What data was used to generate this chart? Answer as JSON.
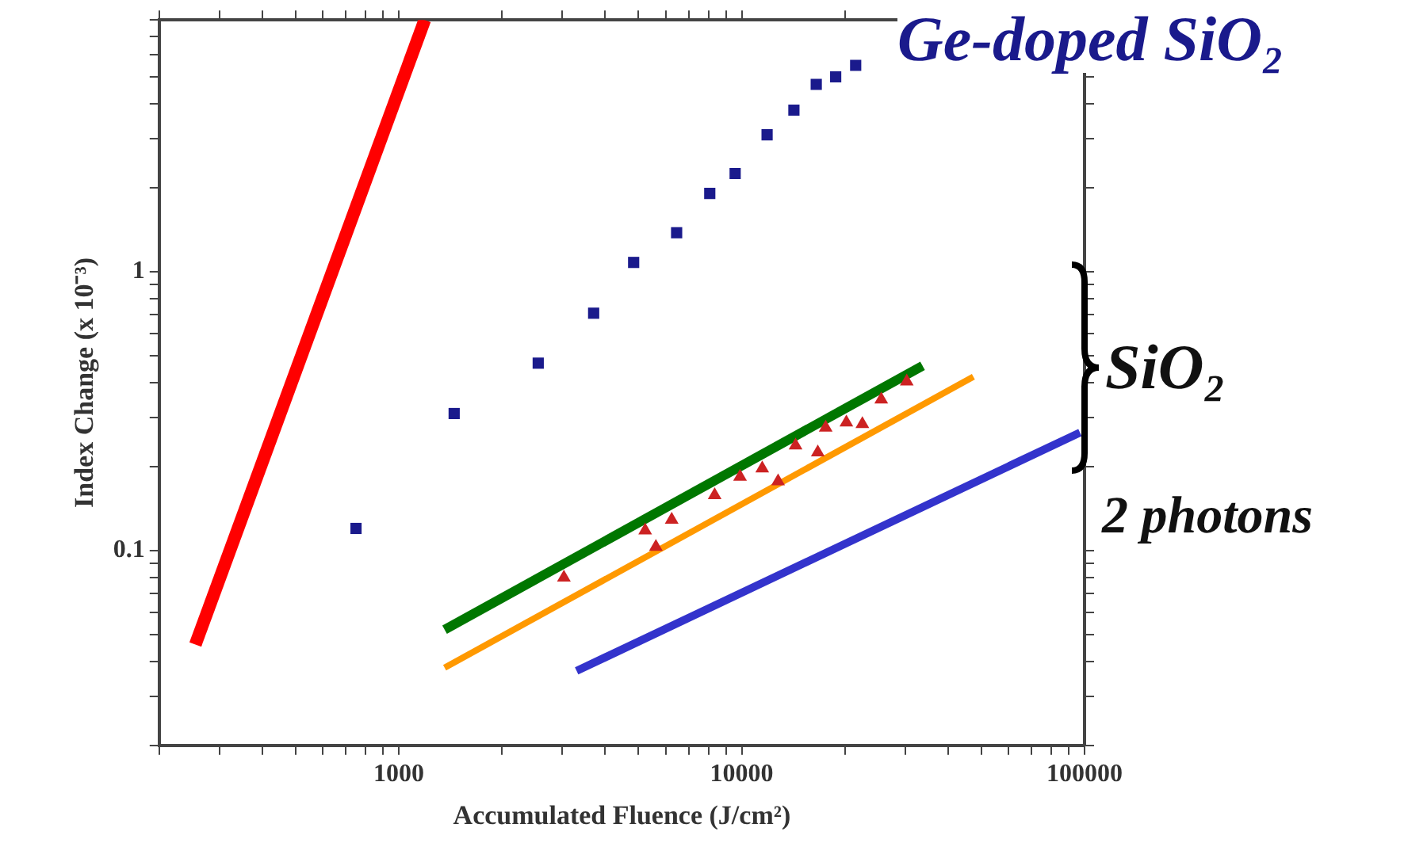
{
  "chart_data": {
    "type": "scatter",
    "xlabel": "Accumulated Fluence (J/cm²)",
    "ylabel": "Index Change (x 10⁻³)",
    "log": "xy",
    "grid": false,
    "legend": false,
    "xlim": [
      200,
      100000
    ],
    "ylim": [
      0.02,
      8
    ],
    "xticks": [
      {
        "value": 200,
        "label": null
      },
      {
        "value": 300,
        "label": null
      },
      {
        "value": 400,
        "label": null
      },
      {
        "value": 500,
        "label": null
      },
      {
        "value": 600,
        "label": null
      },
      {
        "value": 700,
        "label": null
      },
      {
        "value": 800,
        "label": null
      },
      {
        "value": 900,
        "label": null
      },
      1000,
      {
        "value": 2000,
        "label": null
      },
      {
        "value": 3000,
        "label": null
      },
      {
        "value": 4000,
        "label": null
      },
      {
        "value": 5000,
        "label": null
      },
      {
        "value": 6000,
        "label": null
      },
      {
        "value": 7000,
        "label": null
      },
      {
        "value": 8000,
        "label": null
      },
      {
        "value": 9000,
        "label": null
      },
      10000,
      {
        "value": 20000,
        "label": null
      },
      {
        "value": 30000,
        "label": null
      },
      {
        "value": 40000,
        "label": null
      },
      {
        "value": 50000,
        "label": null
      },
      {
        "value": 60000,
        "label": null
      },
      {
        "value": 70000,
        "label": null
      },
      {
        "value": 80000,
        "label": null
      },
      {
        "value": 90000,
        "label": null
      },
      100000
    ],
    "yticks": [
      {
        "value": 0.02,
        "label": null
      },
      {
        "value": 0.03,
        "label": null
      },
      {
        "value": 0.04,
        "label": null
      },
      {
        "value": 0.05,
        "label": null
      },
      {
        "value": 0.06,
        "label": null
      },
      {
        "value": 0.07,
        "label": null
      },
      {
        "value": 0.08,
        "label": null
      },
      {
        "value": 0.09,
        "label": null
      },
      0.1,
      {
        "value": 0.2,
        "label": null
      },
      {
        "value": 0.3,
        "label": null
      },
      {
        "value": 0.4,
        "label": null
      },
      {
        "value": 0.5,
        "label": null
      },
      {
        "value": 0.6,
        "label": null
      },
      {
        "value": 0.7,
        "label": null
      },
      {
        "value": 0.8,
        "label": null
      },
      {
        "value": 0.9,
        "label": null
      },
      1,
      {
        "value": 2,
        "label": null
      },
      {
        "value": 3,
        "label": null
      },
      {
        "value": 4,
        "label": null
      },
      {
        "value": 5,
        "label": null
      },
      {
        "value": 6,
        "label": null
      },
      {
        "value": 7,
        "label": null
      },
      {
        "value": 8,
        "label": null
      }
    ],
    "series": [
      {
        "name": "Ge-doped SiO₂",
        "marker": "square",
        "color": "#1a1a8c",
        "x": [
          750,
          1450,
          2550,
          3700,
          4840,
          6460,
          8070,
          9570,
          11860,
          14200,
          16500,
          18800,
          21500
        ],
        "values": [
          0.12,
          0.31,
          0.47,
          0.71,
          1.08,
          1.38,
          1.91,
          2.25,
          3.1,
          3.8,
          4.7,
          5.0,
          5.5
        ]
      },
      {
        "marker": "triangle",
        "color": "#cc2222",
        "x": [
          3030,
          5230,
          5620,
          6250,
          8340,
          9890,
          11480,
          12770,
          14360,
          16670,
          17580,
          20200,
          22490,
          25530,
          30300
        ],
        "values": [
          0.08,
          0.118,
          0.103,
          0.129,
          0.158,
          0.184,
          0.197,
          0.177,
          0.238,
          0.225,
          0.276,
          0.288,
          0.284,
          0.348,
          0.404
        ]
      },
      {
        "type": "line",
        "marker": "none",
        "color": "#ff0000",
        "x": [
          255,
          1190
        ],
        "values": [
          0.046,
          8
        ]
      },
      {
        "type": "line",
        "marker": "none",
        "color": "#007700",
        "x": [
          1360,
          33700
        ],
        "values": [
          0.052,
          0.46
        ]
      },
      {
        "type": "line",
        "marker": "none",
        "color": "#ff9900",
        "x": [
          1360,
          47400
        ],
        "values": [
          0.038,
          0.42
        ]
      },
      {
        "type": "line",
        "marker": "none",
        "color": "#3333cc",
        "x": [
          3300,
          97000
        ],
        "values": [
          0.037,
          0.265
        ]
      }
    ],
    "annotations": [
      "SiO₂",
      "2 photons"
    ]
  }
}
